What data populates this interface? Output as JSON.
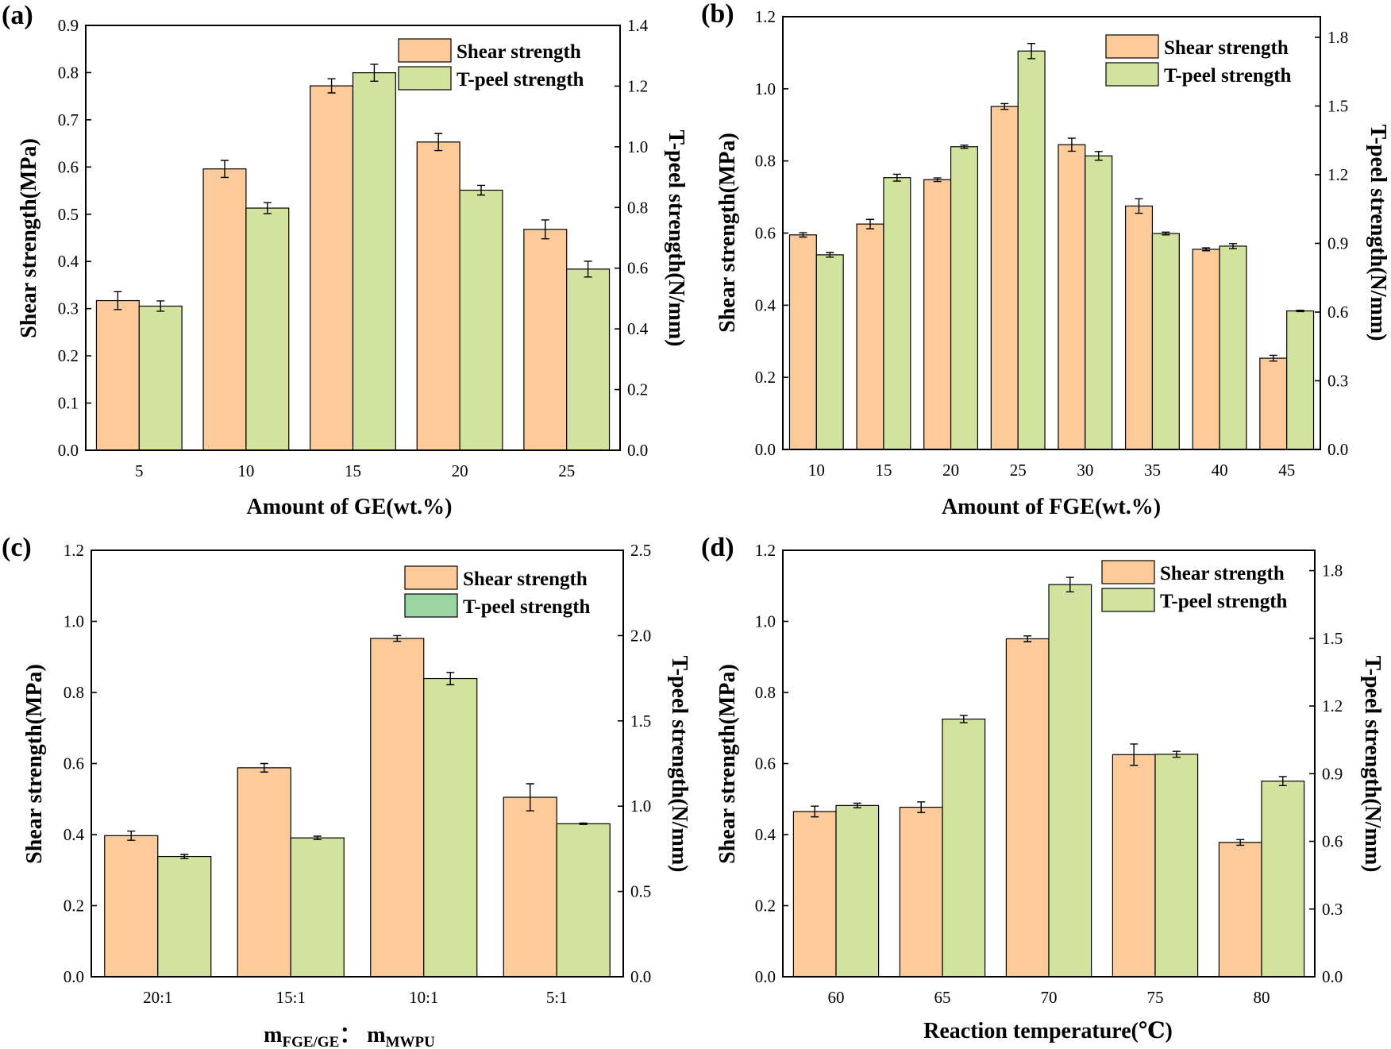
{
  "figure": {
    "colors": {
      "shear": "#FDCB9A",
      "tpeel": "#D2E39E",
      "tpeel_alt": "#9BD4A3",
      "stroke": "#000000"
    }
  },
  "chart_data": [
    {
      "panel_label": "(a)",
      "type": "bar",
      "title": "",
      "xlabel": "Amount of GE(wt.%)",
      "ylabel": "Shear strength(MPa)",
      "y2label": "T-peel strength(N/mm)",
      "categories": [
        "5",
        "10",
        "15",
        "20",
        "25"
      ],
      "ylim": [
        0,
        0.9
      ],
      "yticks": [
        0.0,
        0.1,
        0.2,
        0.3,
        0.4,
        0.5,
        0.6,
        0.7,
        0.8,
        0.9
      ],
      "ytick_labels": [
        "0.0",
        "0.1",
        "0.2",
        "0.3",
        "0.4",
        "0.5",
        "0.6",
        "0.7",
        "0.8",
        "0.9"
      ],
      "y2lim": [
        0,
        1.4
      ],
      "y2ticks": [
        0.0,
        0.2,
        0.4,
        0.6,
        0.8,
        1.0,
        1.2,
        1.4
      ],
      "y2tick_labels": [
        "0.0",
        "0.2",
        "0.4",
        "0.6",
        "0.8",
        "1.0",
        "1.2",
        "1.4"
      ],
      "legend_position": "top-right",
      "series": [
        {
          "name": "Shear strength",
          "axis": "left",
          "color": "#FDCB9A",
          "values": [
            0.317,
            0.596,
            0.772,
            0.653,
            0.468
          ],
          "errors": [
            0.019,
            0.018,
            0.015,
            0.018,
            0.02
          ]
        },
        {
          "name": "T-peel strength",
          "axis": "right",
          "color": "#D2E39E",
          "values": [
            0.475,
            0.798,
            1.244,
            0.857,
            0.597
          ],
          "errors": [
            0.017,
            0.018,
            0.028,
            0.016,
            0.026
          ]
        }
      ]
    },
    {
      "panel_label": "(b)",
      "type": "bar",
      "title": "",
      "xlabel": "Amount of FGE(wt.%)",
      "ylabel": "Shear strength(MPa)",
      "y2label": "T-peel strength(N/mm)",
      "categories": [
        "10",
        "15",
        "20",
        "25",
        "30",
        "35",
        "40",
        "45"
      ],
      "ylim": [
        0,
        1.2
      ],
      "yticks": [
        0.0,
        0.2,
        0.4,
        0.6,
        0.8,
        1.0,
        1.2
      ],
      "ytick_labels": [
        "0.0",
        "0.2",
        "0.4",
        "0.6",
        "0.8",
        "1.0",
        "1.2"
      ],
      "y2lim": [
        0,
        1.89
      ],
      "y2ticks": [
        0.0,
        0.3,
        0.6,
        0.9,
        1.2,
        1.5,
        1.8
      ],
      "y2tick_labels": [
        "0.0",
        "0.3",
        "0.6",
        "0.9",
        "1.2",
        "1.5",
        "1.8"
      ],
      "legend_position": "top-right",
      "series": [
        {
          "name": "Shear strength",
          "axis": "left",
          "color": "#FDCB9A",
          "values": [
            0.595,
            0.625,
            0.748,
            0.951,
            0.845,
            0.675,
            0.555,
            0.253
          ],
          "errors": [
            0.006,
            0.013,
            0.005,
            0.008,
            0.018,
            0.02,
            0.004,
            0.008
          ]
        },
        {
          "name": "T-peel strength",
          "axis": "right",
          "color": "#D2E39E",
          "values": [
            0.85,
            1.187,
            1.322,
            1.74,
            1.282,
            0.943,
            0.888,
            0.605
          ],
          "errors": [
            0.01,
            0.015,
            0.007,
            0.033,
            0.019,
            0.006,
            0.011,
            0.003
          ]
        }
      ]
    },
    {
      "panel_label": "(c)",
      "type": "bar",
      "title": "",
      "xlabel": "m",
      "xlabel_sub1": "FGE/GE",
      "xlabel_sep": "：  m",
      "xlabel_sub2": "MWPU",
      "ylabel": "Shear strength(MPa)",
      "y2label": "T-peel strength(N/mm)",
      "categories": [
        "20:1",
        "15:1",
        "10:1",
        "5:1"
      ],
      "ylim": [
        0,
        1.2
      ],
      "yticks": [
        0.0,
        0.2,
        0.4,
        0.6,
        0.8,
        1.0,
        1.2
      ],
      "ytick_labels": [
        "0.0",
        "0.2",
        "0.4",
        "0.6",
        "0.8",
        "1.0",
        "1.2"
      ],
      "y2lim": [
        0,
        2.5
      ],
      "y2ticks": [
        0.0,
        0.5,
        1.0,
        1.5,
        2.0,
        2.5
      ],
      "y2tick_labels": [
        "0.0",
        "0.5",
        "1.0",
        "1.5",
        "2.0",
        "2.5"
      ],
      "legend_position": "top-right",
      "series": [
        {
          "name": "Shear strength",
          "axis": "left",
          "color": "#FDCB9A",
          "values": [
            0.397,
            0.588,
            0.952,
            0.505
          ],
          "errors": [
            0.013,
            0.012,
            0.008,
            0.038
          ]
        },
        {
          "name": "T-peel strength",
          "axis": "right",
          "color": "#D2E39E",
          "legend_color": "#9BD4A3",
          "values": [
            0.705,
            0.814,
            1.748,
            0.897
          ],
          "errors": [
            0.012,
            0.01,
            0.036,
            0.004
          ]
        }
      ]
    },
    {
      "panel_label": "(d)",
      "type": "bar",
      "title": "",
      "xlabel": "Reaction temperature(℃)",
      "ylabel": "Shear strength(MPa)",
      "y2label": "T-peel strength(N/mm)",
      "categories": [
        "60",
        "65",
        "70",
        "75",
        "80"
      ],
      "ylim": [
        0,
        1.2
      ],
      "yticks": [
        0.0,
        0.2,
        0.4,
        0.6,
        0.8,
        1.0,
        1.2
      ],
      "ytick_labels": [
        "0.0",
        "0.2",
        "0.4",
        "0.6",
        "0.8",
        "1.0",
        "1.2"
      ],
      "y2lim": [
        0,
        1.89
      ],
      "y2ticks": [
        0.0,
        0.3,
        0.6,
        0.9,
        1.2,
        1.5,
        1.8
      ],
      "y2tick_labels": [
        "0.0",
        "0.3",
        "0.6",
        "0.9",
        "1.2",
        "1.5",
        "1.8"
      ],
      "legend_position": "top-right",
      "series": [
        {
          "name": "Shear strength",
          "axis": "left",
          "color": "#FDCB9A",
          "values": [
            0.465,
            0.477,
            0.951,
            0.625,
            0.378
          ],
          "errors": [
            0.015,
            0.015,
            0.008,
            0.03,
            0.008
          ]
        },
        {
          "name": "T-peel strength",
          "axis": "right",
          "color": "#D2E39E",
          "values": [
            0.759,
            1.142,
            1.738,
            0.986,
            0.867
          ],
          "errors": [
            0.01,
            0.016,
            0.032,
            0.013,
            0.02
          ]
        }
      ]
    }
  ]
}
